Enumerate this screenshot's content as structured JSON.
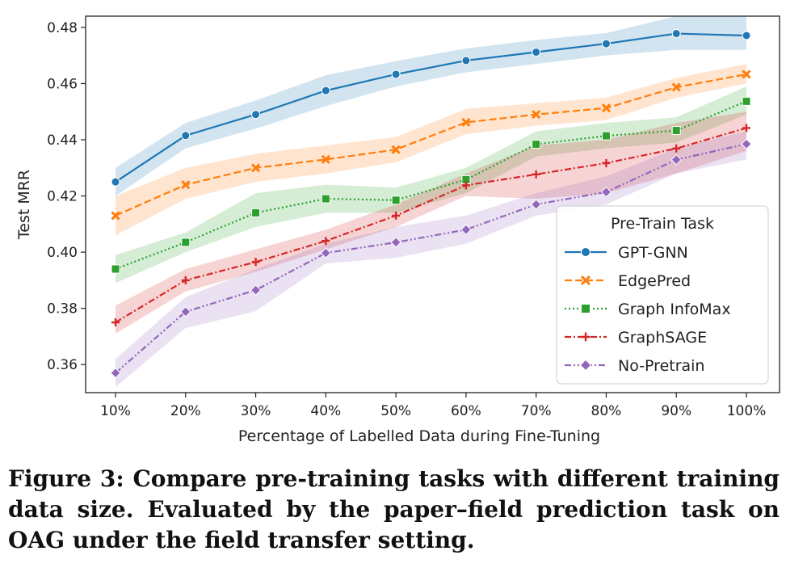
{
  "chart_data": {
    "type": "line",
    "categories": [
      "10%",
      "20%",
      "30%",
      "40%",
      "50%",
      "60%",
      "70%",
      "80%",
      "90%",
      "100%"
    ],
    "xlabel": "Percentage of Labelled Data during Fine-Tuning",
    "ylabel": "Test MRR",
    "ylim": [
      0.35,
      0.484
    ],
    "yticks": [
      0.36,
      0.38,
      0.4,
      0.42,
      0.44,
      0.46,
      0.48
    ],
    "ytick_labels": [
      "0.36",
      "0.38",
      "0.40",
      "0.42",
      "0.44",
      "0.46",
      "0.48"
    ],
    "grid": false,
    "legend": {
      "title": "Pre-Train Task",
      "placement": "lower-right"
    },
    "series": [
      {
        "name": "GPT-GNN",
        "color": "#1f77b4",
        "marker": "circle",
        "dash": "solid",
        "values": [
          0.425,
          0.4415,
          0.449,
          0.4575,
          0.4633,
          0.4682,
          0.4712,
          0.4742,
          0.4778,
          0.4771
        ],
        "lower": [
          0.42,
          0.437,
          0.444,
          0.452,
          0.459,
          0.464,
          0.467,
          0.47,
          0.472,
          0.472
        ],
        "upper": [
          0.43,
          0.446,
          0.454,
          0.463,
          0.468,
          0.4725,
          0.4755,
          0.478,
          0.484,
          0.484
        ]
      },
      {
        "name": "EdgePred",
        "color": "#ff7f0e",
        "marker": "x",
        "dash": "dashed",
        "values": [
          0.413,
          0.424,
          0.43,
          0.433,
          0.4365,
          0.4462,
          0.449,
          0.4513,
          0.4587,
          0.4633
        ],
        "lower": [
          0.406,
          0.419,
          0.425,
          0.428,
          0.432,
          0.442,
          0.445,
          0.447,
          0.455,
          0.46
        ],
        "upper": [
          0.42,
          0.43,
          0.435,
          0.438,
          0.441,
          0.451,
          0.453,
          0.455,
          0.462,
          0.467
        ]
      },
      {
        "name": "Graph InfoMax",
        "color": "#2ca02c",
        "marker": "square",
        "dash": "dotted",
        "values": [
          0.394,
          0.4035,
          0.414,
          0.419,
          0.4185,
          0.4258,
          0.4384,
          0.4414,
          0.4433,
          0.4537
        ],
        "lower": [
          0.389,
          0.4,
          0.409,
          0.414,
          0.414,
          0.421,
          0.434,
          0.437,
          0.439,
          0.449
        ],
        "upper": [
          0.399,
          0.407,
          0.421,
          0.424,
          0.423,
          0.43,
          0.443,
          0.446,
          0.448,
          0.459
        ]
      },
      {
        "name": "GraphSAGE",
        "color": "#d62728",
        "marker": "plus",
        "dash": "dashdot",
        "values": [
          0.375,
          0.39,
          0.3965,
          0.404,
          0.413,
          0.4238,
          0.4277,
          0.4317,
          0.4369,
          0.4442
        ],
        "lower": [
          0.371,
          0.386,
          0.393,
          0.401,
          0.409,
          0.42,
          0.419,
          0.421,
          0.428,
          0.436
        ],
        "upper": [
          0.381,
          0.394,
          0.401,
          0.408,
          0.417,
          0.428,
          0.438,
          0.44,
          0.446,
          0.45
        ]
      },
      {
        "name": "No-Pretrain",
        "color": "#9467bd",
        "marker": "diamond",
        "dash": "dashdotdot",
        "values": [
          0.357,
          0.3788,
          0.3865,
          0.3997,
          0.4035,
          0.408,
          0.417,
          0.4214,
          0.4329,
          0.4385
        ],
        "lower": [
          0.352,
          0.373,
          0.379,
          0.396,
          0.398,
          0.403,
          0.413,
          0.417,
          0.428,
          0.433
        ],
        "upper": [
          0.362,
          0.384,
          0.394,
          0.403,
          0.409,
          0.413,
          0.421,
          0.427,
          0.437,
          0.443
        ]
      }
    ]
  },
  "caption": "Figure 3: Compare pre-training tasks with different training data size. Evaluated by the paper–field prediction task on OAG under the field transfer setting."
}
